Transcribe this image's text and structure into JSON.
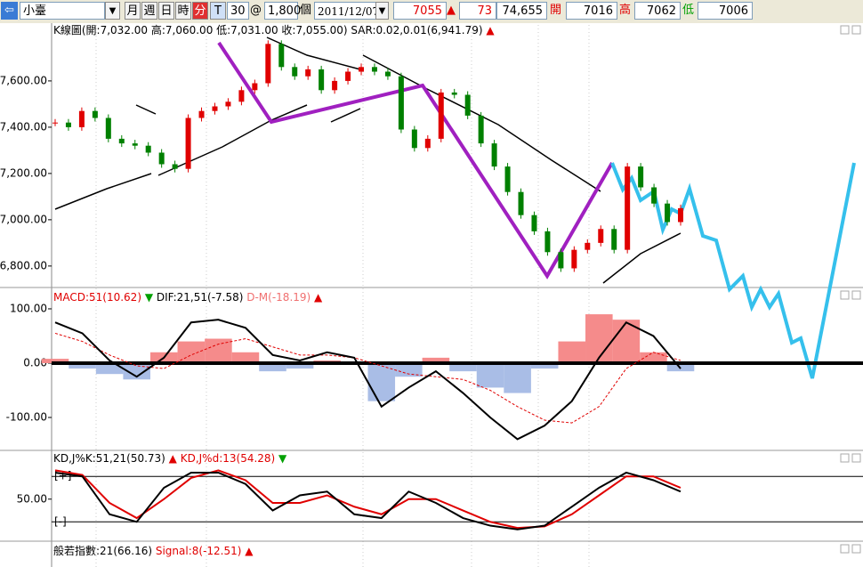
{
  "toolbar": {
    "symbol": "小臺",
    "periods": [
      "月",
      "週",
      "日",
      "時",
      "分",
      "T"
    ],
    "interval": "30",
    "at": "@",
    "lots": "1,800",
    "unit": "個",
    "date": "2011/12/07",
    "last": "7055",
    "direction": "▲",
    "change": "73",
    "volume": "74,655",
    "open_label": "開",
    "open": "7016",
    "high_label": "高",
    "high": "7062",
    "low_label": "低",
    "low": "7006"
  },
  "kline": {
    "legend": [
      {
        "text": "K線圖(開:7,032.00 高:7,060.00 低:7,031.00 收:7,055.00)",
        "color": "#000000"
      },
      {
        "text": "SAR:0.02,0.01(6,941.79)",
        "color": "#000000"
      },
      {
        "text": "▲",
        "color": "#e00000"
      }
    ],
    "ylim": [
      6711,
      7842
    ],
    "yticks": [
      {
        "value": 7600,
        "label": "7,600.00"
      },
      {
        "value": 7400,
        "label": "7,400.00"
      },
      {
        "value": 7200,
        "label": "7,200.00"
      },
      {
        "value": 7000,
        "label": "7,000.00"
      },
      {
        "value": 6800,
        "label": "6,800.00"
      }
    ],
    "up_color": "#e00000",
    "down_color": "#008000",
    "close": [
      7420,
      7400,
      7470,
      7440,
      7350,
      7330,
      7320,
      7290,
      7240,
      7220,
      7440,
      7470,
      7490,
      7510,
      7560,
      7590,
      7760,
      7660,
      7620,
      7650,
      7560,
      7600,
      7640,
      7660,
      7640,
      7620,
      7390,
      7310,
      7350,
      7550,
      7540,
      7450,
      7330,
      7230,
      7120,
      7020,
      6950,
      6860,
      6790,
      6870,
      6900,
      6960,
      6870,
      7230,
      7140,
      7070,
      6990,
      7050
    ]
  },
  "macd": {
    "legend": [
      {
        "text": "MACD:51(10.62)",
        "color": "#e00000"
      },
      {
        "text": "▼",
        "color": "#00a000"
      },
      {
        "text": "DIF:21,51(-7.58)",
        "color": "#000000"
      },
      {
        "text": "D-M(-18.19)",
        "color": "#f07070"
      },
      {
        "text": "▲",
        "color": "#e00000"
      }
    ],
    "ylim": [
      -159,
      136
    ],
    "yticks": [
      {
        "value": 100,
        "label": "100.00"
      },
      {
        "value": 0,
        "label": "0.00"
      },
      {
        "value": -100,
        "label": "-100.00"
      }
    ],
    "dif_color": "#000000",
    "signal_color": "#e00000",
    "pos_color": "#f58b8b",
    "neg_color": "#a9bde6",
    "dif": [
      75,
      55,
      5,
      -25,
      10,
      75,
      80,
      65,
      15,
      5,
      20,
      10,
      -80,
      -45,
      -15,
      -55,
      -100,
      -140,
      -115,
      -70,
      10,
      75,
      50,
      -10
    ],
    "signal": [
      55,
      40,
      15,
      -5,
      -10,
      15,
      35,
      45,
      30,
      15,
      15,
      10,
      -5,
      -20,
      -25,
      -30,
      -50,
      -80,
      -105,
      -110,
      -80,
      -10,
      20,
      5
    ],
    "osc": [
      8,
      -10,
      -20,
      -30,
      20,
      40,
      45,
      20,
      -15,
      -10,
      5,
      0,
      -70,
      -25,
      10,
      -15,
      -45,
      -55,
      -10,
      40,
      90,
      80,
      20,
      -15
    ]
  },
  "kd": {
    "legend": [
      {
        "text": "KD,J%K:51,21(50.73)",
        "color": "#000000"
      },
      {
        "text": "▲",
        "color": "#e00000"
      },
      {
        "text": "KD,J%d:13(54.28)",
        "color": "#e00000"
      },
      {
        "text": "▼",
        "color": "#00a000"
      }
    ],
    "ylim": [
      -2,
      112
    ],
    "yticks": [
      {
        "value": 50,
        "label": "50.00"
      }
    ],
    "bands": [
      {
        "value": 80,
        "label": "[+]"
      },
      {
        "value": 20,
        "label": "[-]"
      }
    ],
    "k_color": "#000000",
    "d_color": "#e00000",
    "k": [
      85,
      80,
      30,
      20,
      65,
      85,
      85,
      70,
      35,
      55,
      60,
      30,
      25,
      60,
      45,
      25,
      15,
      10,
      15,
      40,
      65,
      85,
      75,
      60
    ],
    "d": [
      88,
      82,
      45,
      25,
      50,
      78,
      88,
      75,
      45,
      45,
      55,
      40,
      30,
      50,
      50,
      35,
      20,
      12,
      14,
      30,
      55,
      80,
      80,
      65
    ]
  },
  "bias": {
    "legend": [
      {
        "text": "般若指數:21(66.16)",
        "color": "#000000"
      },
      {
        "text": "Signal:8(-12.51)",
        "color": "#e00000"
      },
      {
        "text": "▲",
        "color": "#e00000"
      }
    ]
  }
}
